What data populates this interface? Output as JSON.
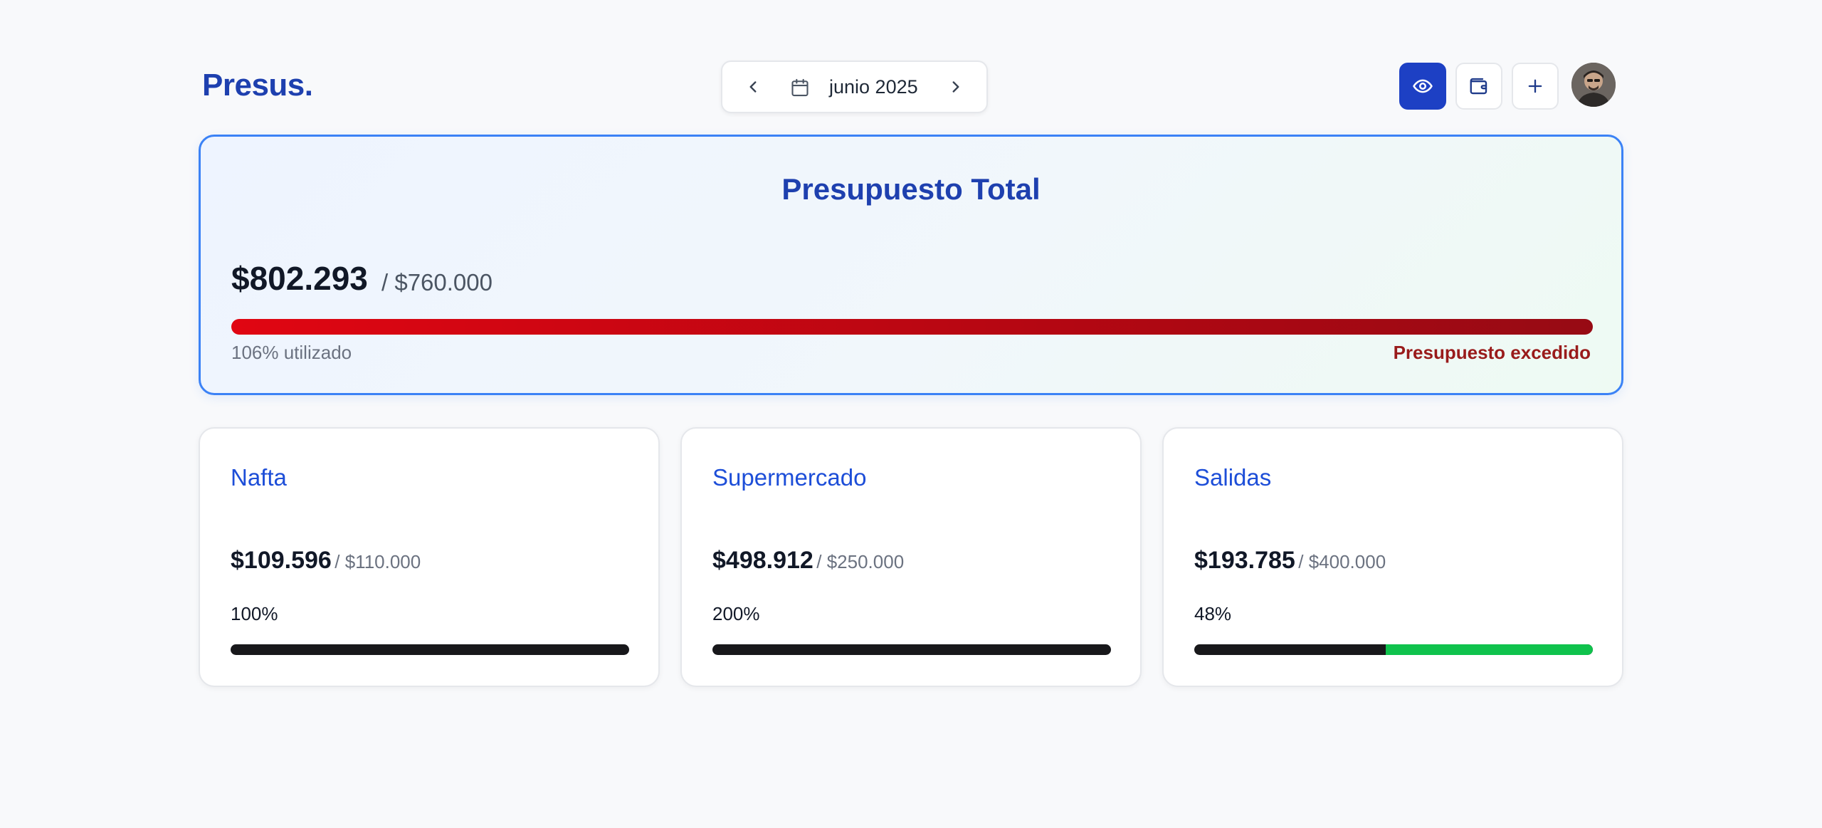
{
  "app": {
    "logo": "Presus."
  },
  "month_picker": {
    "label": "junio 2025"
  },
  "total": {
    "title": "Presupuesto Total",
    "spent": "$802.293",
    "budget": "/ $760.000",
    "used_label": "106% utilizado",
    "used_fraction": 1.06,
    "status": "Presupuesto excedido"
  },
  "categories": [
    {
      "name": "Nafta",
      "spent": "$109.596",
      "budget": "/ $110.000",
      "percent_label": "100%",
      "percent": 100
    },
    {
      "name": "Supermercado",
      "spent": "$498.912",
      "budget": "/ $250.000",
      "percent_label": "200%",
      "percent": 200
    },
    {
      "name": "Salidas",
      "spent": "$193.785",
      "budget": "/ $400.000",
      "percent_label": "48%",
      "percent": 48
    }
  ],
  "colors": {
    "brand": "#1e40af",
    "accent": "#1d40c4",
    "danger": "#991b1b",
    "bar_track": "#18181b",
    "bar_remaining": "#0fc24c"
  },
  "icons": {
    "prev": "chevron-left-icon",
    "calendar": "calendar-icon",
    "next": "chevron-right-icon",
    "eye": "eye-icon",
    "wallet": "wallet-icon",
    "add": "plus-icon"
  }
}
